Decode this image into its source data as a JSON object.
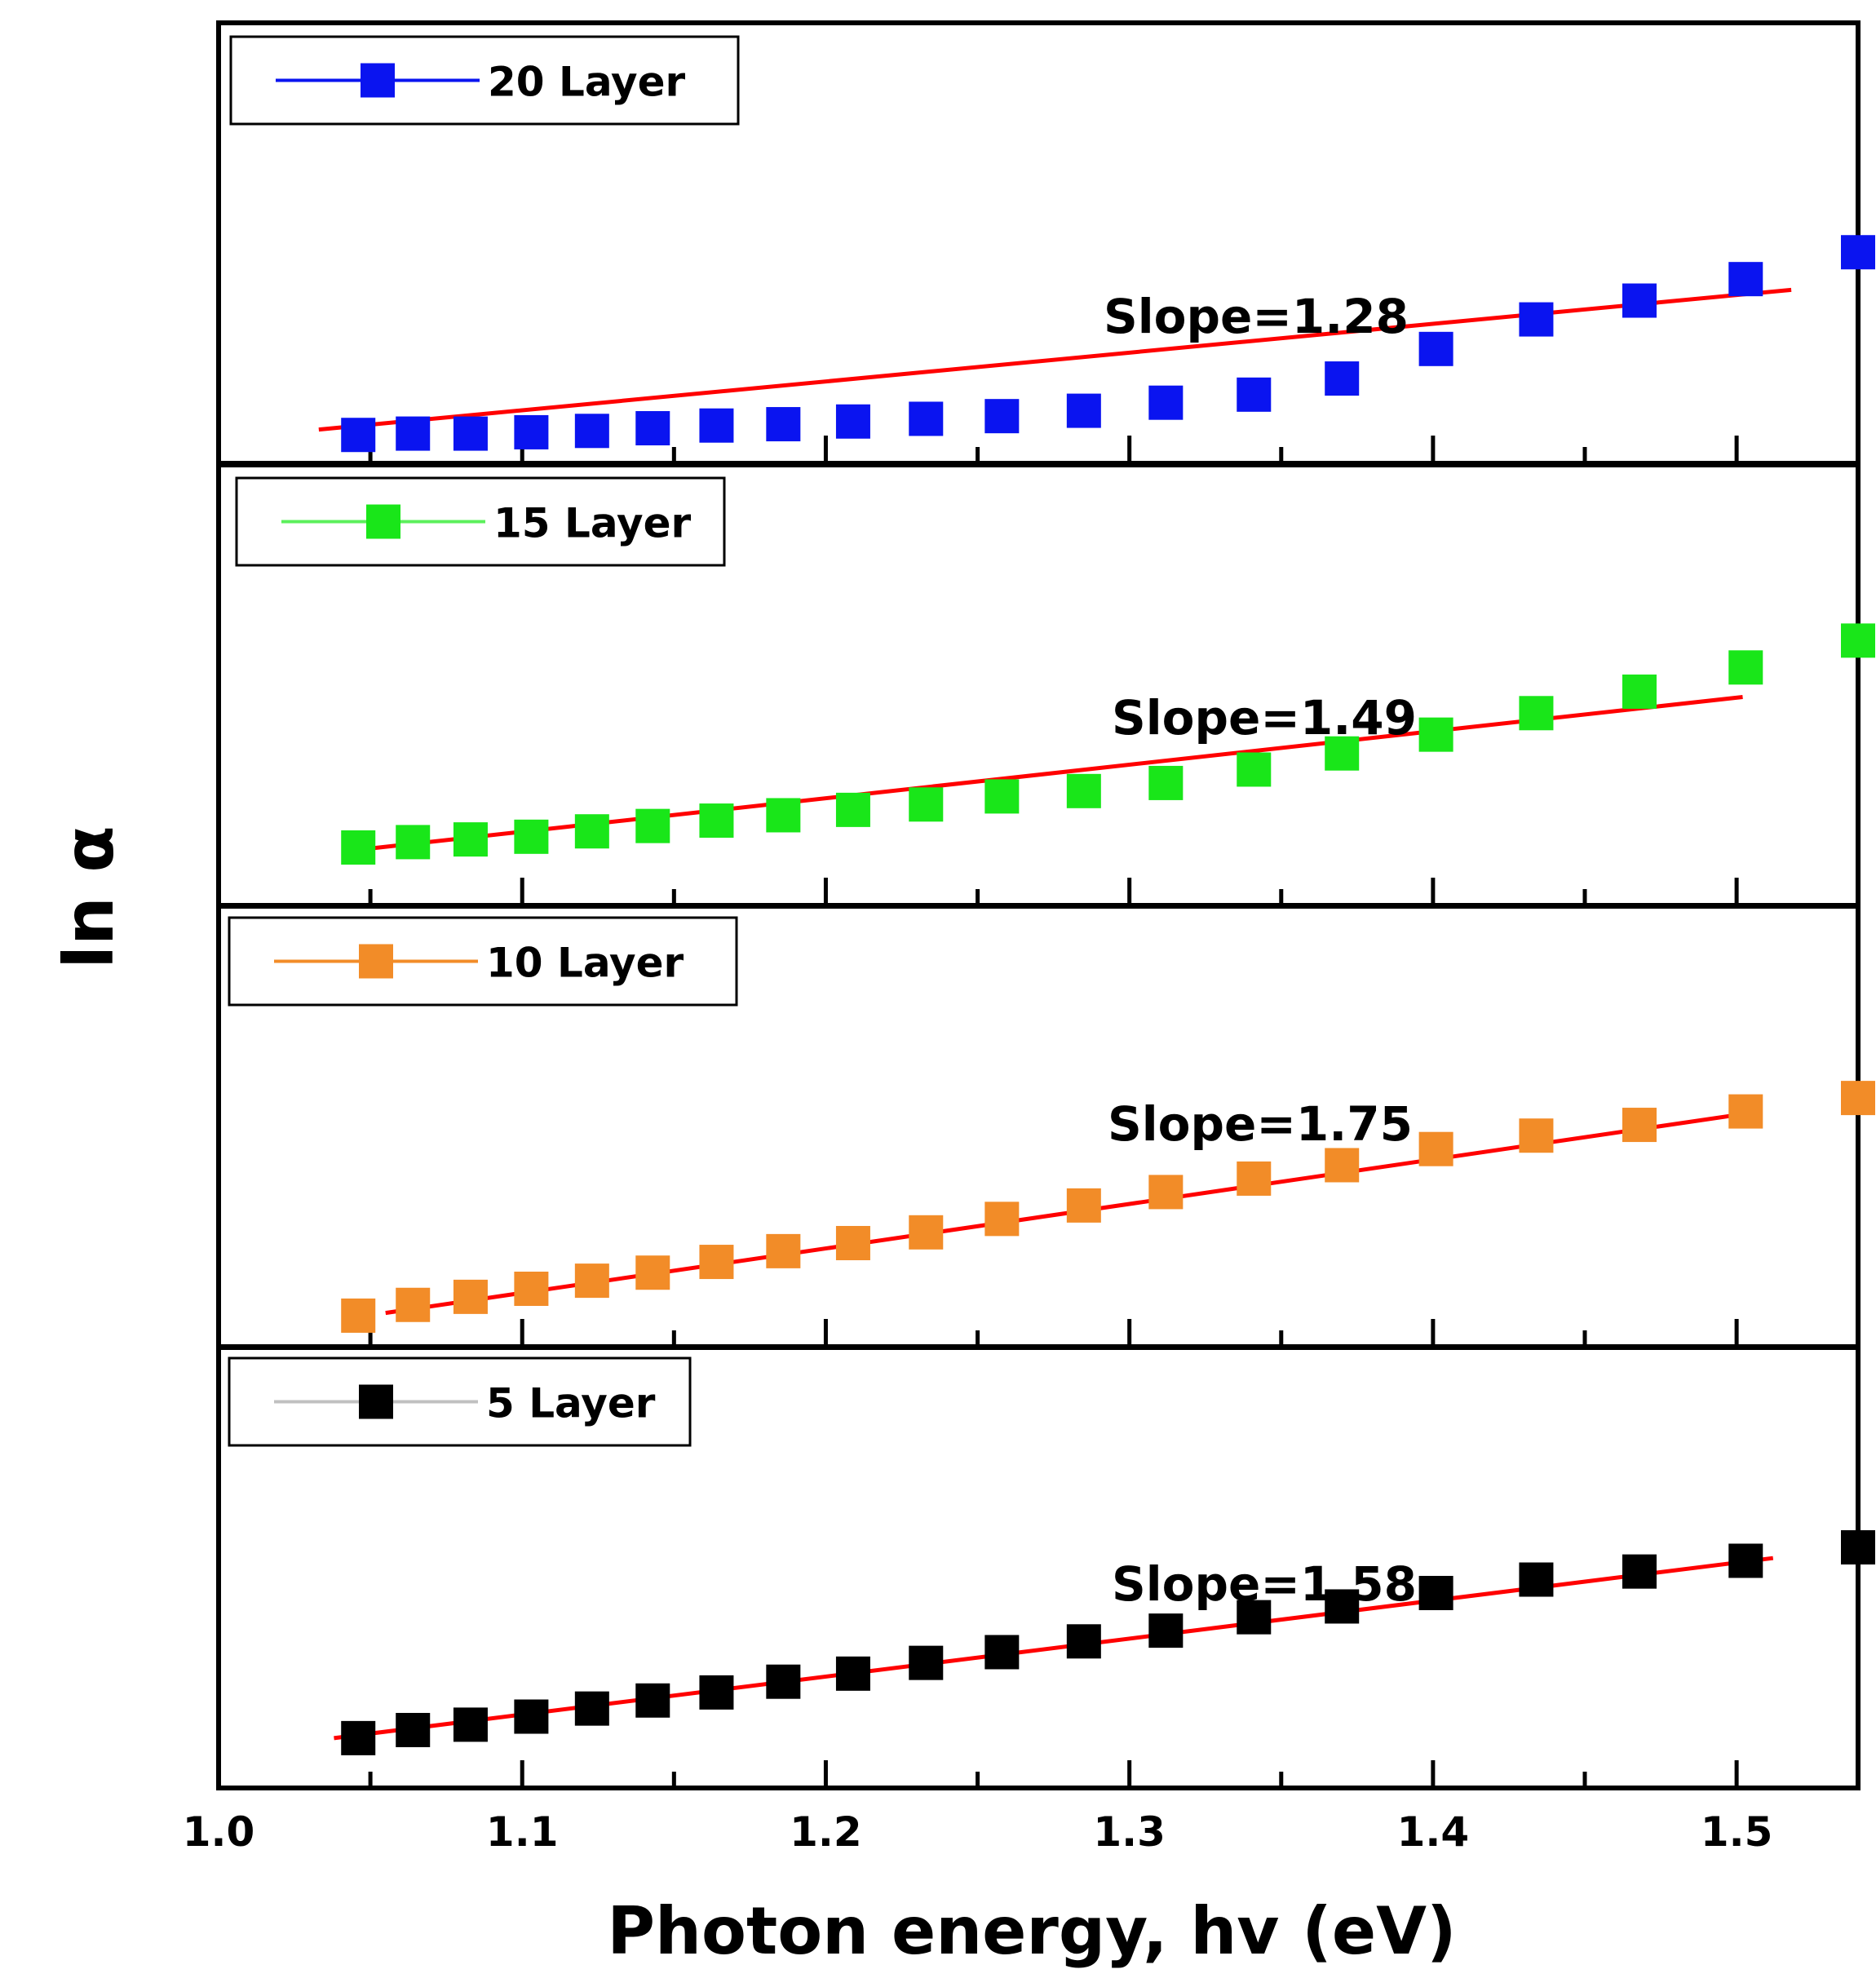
{
  "chart_data": {
    "type": "scatter",
    "layout": "stacked-panels",
    "xlabel": "Photon energy, hv (eV)",
    "ylabel": "ln α",
    "xlim": [
      1.0,
      1.54
    ],
    "x_ticks": [
      "1.0",
      "1.1",
      "1.2",
      "1.3",
      "1.4",
      "1.5"
    ],
    "x_tick_values": [
      1.0,
      1.1,
      1.2,
      1.3,
      1.4,
      1.5
    ],
    "y_ticks_shown": false,
    "fit_color": "#ff0000",
    "legend_placement": "top-left of each panel",
    "panels": [
      {
        "series": {
          "name": "20 Layer",
          "color": "#0a14f0",
          "line_color": "#0a14f0",
          "x": [
            1.046,
            1.064,
            1.083,
            1.103,
            1.123,
            1.143,
            1.164,
            1.186,
            1.209,
            1.233,
            1.258,
            1.285,
            1.312,
            1.341,
            1.37,
            1.401,
            1.434,
            1.468,
            1.503,
            1.54
          ],
          "y": [
            0.04,
            0.045,
            0.045,
            0.05,
            0.055,
            0.065,
            0.075,
            0.08,
            0.09,
            0.1,
            0.11,
            0.13,
            0.16,
            0.19,
            0.25,
            0.36,
            0.47,
            0.54,
            0.62,
            0.72
          ]
        },
        "fit": {
          "slope_label": "Slope=1.28",
          "x": [
            1.033,
            1.518
          ],
          "y": [
            0.06,
            0.58
          ]
        }
      },
      {
        "series": {
          "name": "15 Layer",
          "color": "#19e619",
          "line_color": "#5cf05c",
          "x": [
            1.046,
            1.064,
            1.083,
            1.103,
            1.123,
            1.143,
            1.164,
            1.186,
            1.209,
            1.233,
            1.258,
            1.285,
            1.312,
            1.341,
            1.37,
            1.401,
            1.434,
            1.468,
            1.503,
            1.54
          ],
          "y": [
            0.15,
            0.17,
            0.18,
            0.19,
            0.21,
            0.23,
            0.25,
            0.27,
            0.29,
            0.31,
            0.34,
            0.36,
            0.39,
            0.44,
            0.5,
            0.57,
            0.65,
            0.73,
            0.82,
            0.92
          ]
        },
        "fit": {
          "slope_label": "Slope=1.49",
          "x": [
            1.045,
            1.502
          ],
          "y": [
            0.14,
            0.71
          ]
        }
      },
      {
        "series": {
          "name": "10 Layer",
          "color": "#f28c28",
          "line_color": "#f28c28",
          "x": [
            1.046,
            1.064,
            1.083,
            1.103,
            1.123,
            1.143,
            1.164,
            1.186,
            1.209,
            1.233,
            1.258,
            1.285,
            1.312,
            1.341,
            1.37,
            1.401,
            1.434,
            1.468,
            1.503,
            1.54
          ],
          "y": [
            0.05,
            0.09,
            0.12,
            0.15,
            0.18,
            0.21,
            0.25,
            0.29,
            0.32,
            0.36,
            0.41,
            0.46,
            0.51,
            0.56,
            0.61,
            0.67,
            0.72,
            0.76,
            0.81,
            0.86
          ]
        },
        "fit": {
          "slope_label": "Slope=1.75",
          "x": [
            1.055,
            1.508
          ],
          "y": [
            0.06,
            0.81
          ]
        }
      },
      {
        "series": {
          "name": "5 Layer",
          "color": "#000000",
          "line_color": "#c0c0c0",
          "x": [
            1.046,
            1.064,
            1.083,
            1.103,
            1.123,
            1.143,
            1.164,
            1.186,
            1.209,
            1.233,
            1.258,
            1.285,
            1.312,
            1.341,
            1.37,
            1.401,
            1.434,
            1.468,
            1.503,
            1.54
          ],
          "y": [
            0.12,
            0.15,
            0.17,
            0.2,
            0.23,
            0.26,
            0.29,
            0.33,
            0.36,
            0.4,
            0.44,
            0.48,
            0.52,
            0.57,
            0.61,
            0.66,
            0.71,
            0.74,
            0.78,
            0.83
          ]
        },
        "fit": {
          "slope_label": "Slope=1.58",
          "x": [
            1.038,
            1.512
          ],
          "y": [
            0.12,
            0.79
          ]
        }
      }
    ]
  }
}
